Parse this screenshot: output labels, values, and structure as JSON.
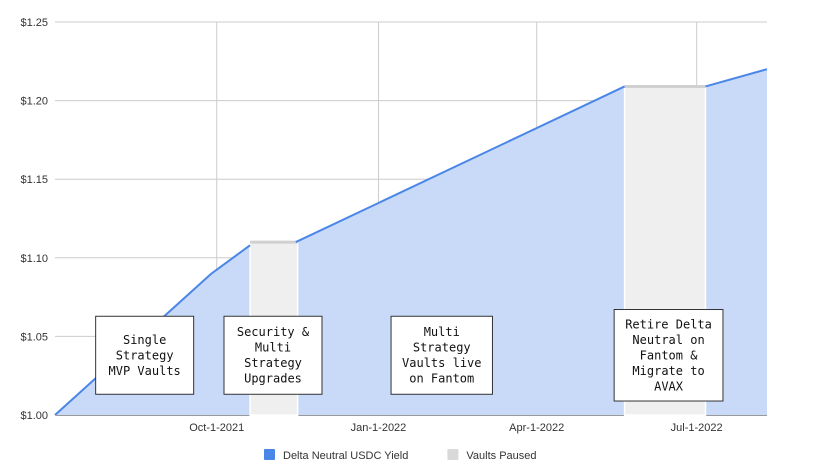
{
  "chart_data": {
    "type": "area",
    "title": "",
    "xlabel": "",
    "ylabel": "",
    "x_range": [
      "2021-07-01",
      "2022-08-10"
    ],
    "ylim": [
      1.0,
      1.25
    ],
    "grid": true,
    "legend_position": "bottom",
    "y_ticks": [
      {
        "value": 1.0,
        "label": "$1.00"
      },
      {
        "value": 1.05,
        "label": "$1.05"
      },
      {
        "value": 1.1,
        "label": "$1.10"
      },
      {
        "value": 1.15,
        "label": "$1.15"
      },
      {
        "value": 1.2,
        "label": "$1.20"
      },
      {
        "value": 1.25,
        "label": "$1.25"
      }
    ],
    "x_ticks": [
      {
        "date": "2021-10-01",
        "label": "Oct-1-2021"
      },
      {
        "date": "2022-01-01",
        "label": "Jan-1-2022"
      },
      {
        "date": "2022-04-01",
        "label": "Apr-1-2022"
      },
      {
        "date": "2022-07-01",
        "label": "Jul-1-2022"
      }
    ],
    "series": [
      {
        "name": "Delta Neutral USDC Yield",
        "color": "#4a86e8",
        "fill": "#c9daf8",
        "points": [
          {
            "x": "2021-07-01",
            "y": 1.0
          },
          {
            "x": "2021-09-28",
            "y": 1.09
          },
          {
            "x": "2021-10-20",
            "y": 1.108
          },
          {
            "x": "2021-11-15",
            "y": 1.11
          },
          {
            "x": "2022-05-21",
            "y": 1.209
          },
          {
            "x": "2022-07-06",
            "y": 1.209
          },
          {
            "x": "2022-08-10",
            "y": 1.22
          }
        ]
      }
    ],
    "paused_periods": [
      {
        "name": "Vaults Paused",
        "color": "#efefef",
        "start": "2021-10-20",
        "end": "2021-11-16",
        "y": 1.11
      },
      {
        "name": "Vaults Paused",
        "color": "#efefef",
        "start": "2022-05-21",
        "end": "2022-07-06",
        "y": 1.209
      }
    ],
    "annotations": [
      {
        "x_date": "2021-08-21",
        "y_value": 1.038,
        "lines": [
          "Single",
          "Strategy",
          "MVP Vaults"
        ]
      },
      {
        "x_date": "2021-11-02",
        "y_value": 1.038,
        "lines": [
          "Security &",
          "Multi",
          "Strategy",
          "Upgrades"
        ]
      },
      {
        "x_date": "2022-02-06",
        "y_value": 1.038,
        "lines": [
          "Multi",
          "Strategy",
          "Vaults live",
          "on Fantom"
        ]
      },
      {
        "x_date": "2022-06-15",
        "y_value": 1.038,
        "lines": [
          "Retire Delta",
          "Neutral on",
          "Fantom &",
          "Migrate to",
          "AVAX"
        ]
      }
    ],
    "legend": [
      {
        "label": "Delta Neutral USDC Yield",
        "color": "#4a86e8"
      },
      {
        "label": "Vaults Paused",
        "color": "#d9d9d9"
      }
    ]
  }
}
